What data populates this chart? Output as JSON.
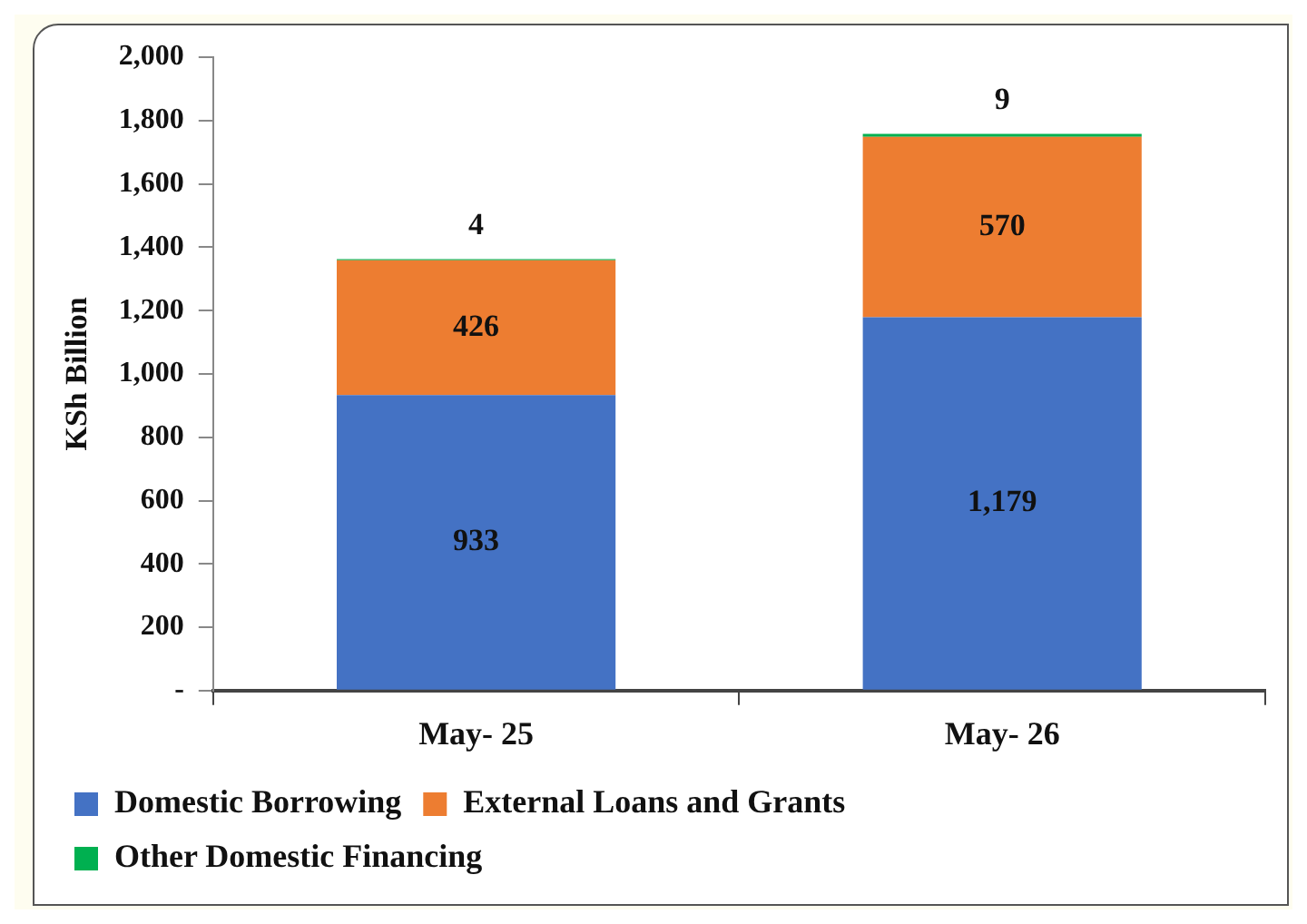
{
  "chart_data": {
    "type": "bar",
    "stacked": true,
    "ylabel": "KSh Billion",
    "categories": [
      "May- 25",
      "May- 26"
    ],
    "series": [
      {
        "name": "Domestic Borrowing",
        "color": "#4472c4",
        "values": [
          933,
          1179
        ],
        "value_labels": [
          "933",
          "1,179"
        ]
      },
      {
        "name": "External Loans and Grants",
        "color": "#ed7d31",
        "values": [
          426,
          570
        ],
        "value_labels": [
          "426",
          "570"
        ]
      },
      {
        "name": "Other Domestic Financing",
        "color": "#00b050",
        "values": [
          4,
          9
        ],
        "value_labels": [
          "4",
          "9"
        ]
      }
    ],
    "ylim": [
      0,
      2000
    ],
    "yticks": [
      {
        "value": 0,
        "label": "-"
      },
      200,
      400,
      600,
      800,
      {
        "value": 1000,
        "label": "1,000"
      },
      {
        "value": 1200,
        "label": "1,200"
      },
      {
        "value": 1400,
        "label": "1,400"
      },
      {
        "value": 1600,
        "label": "1,600"
      },
      {
        "value": 1800,
        "label": "1,800"
      },
      {
        "value": 2000,
        "label": "2,000"
      }
    ],
    "grid": false,
    "legend": "bottom"
  }
}
